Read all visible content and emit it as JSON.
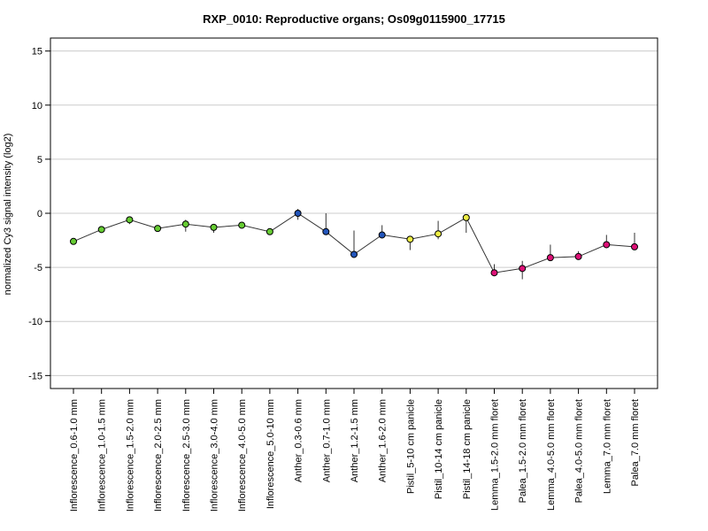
{
  "chart_data": {
    "type": "line",
    "title": "RXP_0010: Reproductive organs; Os09g0115900_17715",
    "ylabel": "normalized Cy3 signal intensity (log2)",
    "xlabel": "",
    "ylim": [
      -16.2,
      16.2
    ],
    "yticks": [
      -15,
      -10,
      -5,
      0,
      5,
      10,
      15
    ],
    "grid": "horizontal",
    "legend": "none",
    "categories": [
      "Inflorescence_0.6-1.0 mm",
      "Inflorescence_1.0-1.5 mm",
      "Inflorescence_1.5-2.0 mm",
      "Inflorescence_2.0-2.5 mm",
      "Inflorescence_2.5-3.0 mm",
      "Inflorescence_3.0-4.0 mm",
      "Inflorescence_4.0-5.0 mm",
      "Inflorescence_5.0-10 mm",
      "Anther_0.3-0.6 mm",
      "Anther_0.7-1.0 mm",
      "Anther_1.2-1.5 mm",
      "Anther_1.6-2.0 mm",
      "Pistil_5-10 cm panicle",
      "Pistil_10-14 cm panicle",
      "Pistil_14-18 cm panicle",
      "Lemma_1.5-2.0 mm floret",
      "Palea_1.5-2.0 mm floret",
      "Lemma_4.0-5.0 mm floret",
      "Palea_4.0-5.0 mm floret",
      "Lemma_7.0 mm floret",
      "Palea_7.0 mm floret"
    ],
    "values": [
      -2.6,
      -1.5,
      -0.6,
      -1.4,
      -1.0,
      -1.3,
      -1.1,
      -1.7,
      0.0,
      -1.7,
      -3.8,
      -2.0,
      -2.4,
      -1.9,
      -0.4,
      -5.5,
      -5.1,
      -4.1,
      -4.0,
      -2.9,
      -3.1
    ],
    "error_low": [
      -2.8,
      -1.6,
      -1.0,
      -1.5,
      -1.7,
      -1.8,
      -1.3,
      -1.8,
      -0.6,
      -1.9,
      -3.9,
      -2.2,
      -3.4,
      -2.4,
      -1.8,
      -5.6,
      -6.1,
      -4.3,
      -4.2,
      -3.1,
      -3.2
    ],
    "error_high": [
      -2.4,
      -1.3,
      -0.3,
      -1.3,
      -0.6,
      -1.0,
      -0.9,
      -1.6,
      0.4,
      0.0,
      -1.6,
      -1.1,
      -2.2,
      -0.7,
      -0.2,
      -4.7,
      -4.4,
      -2.9,
      -3.5,
      -2.0,
      -1.8
    ],
    "point_colors": [
      "#66cc33",
      "#66cc33",
      "#66cc33",
      "#66cc33",
      "#66cc33",
      "#66cc33",
      "#66cc33",
      "#66cc33",
      "#2255bb",
      "#2255bb",
      "#2255bb",
      "#2255bb",
      "#eeee44",
      "#eeee44",
      "#eeee44",
      "#dd1177",
      "#dd1177",
      "#dd1177",
      "#dd1177",
      "#dd1177",
      "#dd1177"
    ],
    "line_color": "#333333",
    "grid_color": "#cccccc"
  }
}
